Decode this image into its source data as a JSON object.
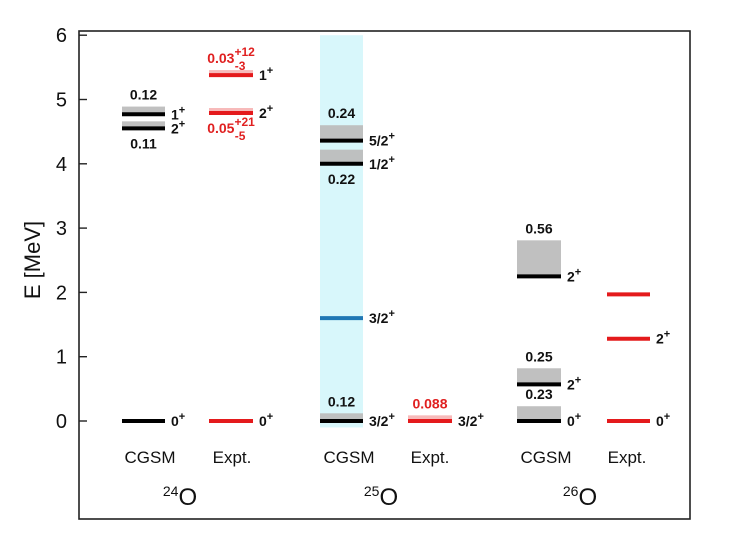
{
  "chart_data": {
    "type": "level-scheme",
    "title": "",
    "xlabel": "",
    "ylabel": "E [MeV]",
    "ylim": [
      -1.5,
      6.05
    ],
    "yticks": [
      0,
      1,
      2,
      3,
      4,
      5,
      6
    ],
    "colors": {
      "cgsm": "#000000",
      "expt": "#e41a1c",
      "cgsm_special": "#1f77b4",
      "width_band": "#bdbdbd",
      "expt_band": "#f7b6b6",
      "highlight_band": "#d8f7fb",
      "axis": "#222222"
    },
    "groups": [
      {
        "nucleus": "24O",
        "mass": "24",
        "element": "O",
        "columns": [
          {
            "label": "CGSM",
            "type": "cgsm",
            "levels": [
              {
                "energy": 0.0,
                "spin": "0+",
                "spin_base": "0",
                "spin_sup": "+"
              },
              {
                "energy": 4.55,
                "spin": "2+",
                "spin_base": "2",
                "spin_sup": "+",
                "width": 0.11,
                "width_text": "0.11",
                "width_pos": "below"
              },
              {
                "energy": 4.77,
                "spin": "1+",
                "spin_base": "1",
                "spin_sup": "+",
                "width": 0.12,
                "width_text": "0.12",
                "width_pos": "above"
              }
            ]
          },
          {
            "label": "Expt.",
            "type": "expt",
            "levels": [
              {
                "energy": 0.0,
                "spin": "0+",
                "spin_base": "0",
                "spin_sup": "+"
              },
              {
                "energy": 4.79,
                "spin": "2+",
                "spin_base": "2",
                "spin_sup": "+",
                "width": 0.05,
                "width_text": "0.05",
                "width_sup": "+21",
                "width_sub": "-5",
                "width_pos": "below"
              },
              {
                "energy": 5.38,
                "spin": "1+",
                "spin_base": "1",
                "spin_sup": "+",
                "width": 0.03,
                "width_text": "0.03",
                "width_sup": "+12",
                "width_sub": "-3",
                "width_pos": "above"
              }
            ]
          }
        ]
      },
      {
        "nucleus": "25O",
        "mass": "25",
        "element": "O",
        "columns": [
          {
            "label": "CGSM",
            "type": "cgsm",
            "highlight": [
              -0.1,
              6.0
            ],
            "levels": [
              {
                "energy": 0.0,
                "spin": "3/2+",
                "spin_base": "3/2",
                "spin_sup": "+",
                "width": 0.12,
                "width_text": "0.12",
                "width_pos": "above"
              },
              {
                "energy": 1.6,
                "spin": "3/2+",
                "spin_base": "3/2",
                "spin_sup": "+",
                "color": "special"
              },
              {
                "energy": 4.0,
                "spin": "1/2+",
                "spin_base": "1/2",
                "spin_sup": "+",
                "width": 0.22,
                "width_text": "0.22",
                "width_pos": "below"
              },
              {
                "energy": 4.36,
                "spin": "5/2+",
                "spin_base": "5/2",
                "spin_sup": "+",
                "width": 0.24,
                "width_text": "0.24",
                "width_pos": "above"
              }
            ]
          },
          {
            "label": "Expt.",
            "type": "expt",
            "levels": [
              {
                "energy": 0.0,
                "spin": "3/2+",
                "spin_base": "3/2",
                "spin_sup": "+",
                "width": 0.088,
                "width_text": "0.088",
                "width_pos": "above"
              }
            ]
          }
        ]
      },
      {
        "nucleus": "26O",
        "mass": "26",
        "element": "O",
        "columns": [
          {
            "label": "CGSM",
            "type": "cgsm",
            "levels": [
              {
                "energy": 0.0,
                "spin": "0+",
                "spin_base": "0",
                "spin_sup": "+",
                "width": 0.23,
                "width_text": "0.23",
                "width_pos": "above"
              },
              {
                "energy": 0.57,
                "spin": "2+",
                "spin_base": "2",
                "spin_sup": "+",
                "width": 0.25,
                "width_text": "0.25",
                "width_pos": "above"
              },
              {
                "energy": 2.25,
                "spin": "2+",
                "spin_base": "2",
                "spin_sup": "+",
                "width": 0.56,
                "width_text": "0.56",
                "width_pos": "above"
              }
            ]
          },
          {
            "label": "Expt.",
            "type": "expt",
            "levels": [
              {
                "energy": 0.0,
                "spin": "0+",
                "spin_base": "0",
                "spin_sup": "+"
              },
              {
                "energy": 1.28,
                "spin": "2+",
                "spin_base": "2",
                "spin_sup": "+"
              },
              {
                "energy": 1.97,
                "spin": "",
                "spin_base": "",
                "spin_sup": ""
              }
            ]
          }
        ]
      }
    ]
  }
}
